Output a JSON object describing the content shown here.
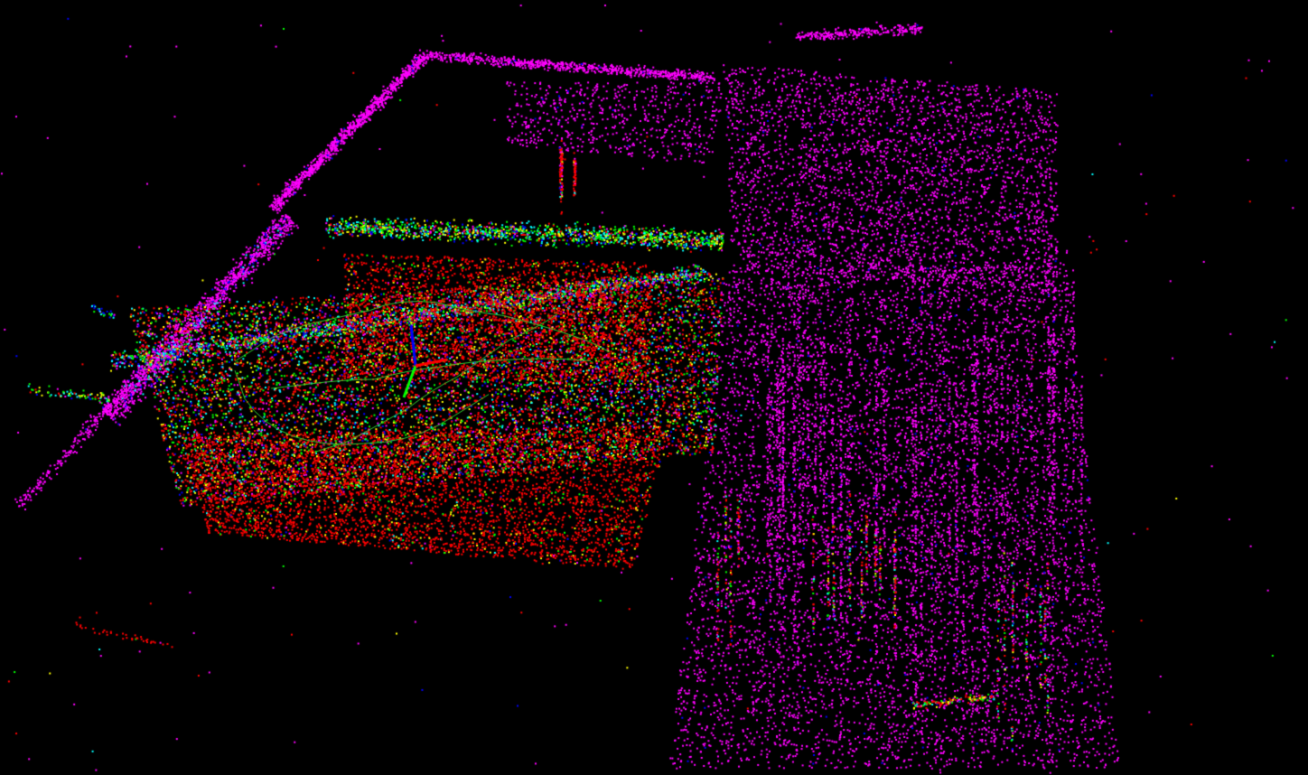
{
  "viewer": {
    "background_color": "#000000",
    "colormap": [
      "#ff0000",
      "#ffff00",
      "#00ff00",
      "#00ffff",
      "#0000ff",
      "#ff00ff"
    ],
    "trajectory_color": "#2fd12f",
    "axis_colors": {
      "x": "#ff0000",
      "y": "#00ff00",
      "z": "#0000ff"
    }
  }
}
